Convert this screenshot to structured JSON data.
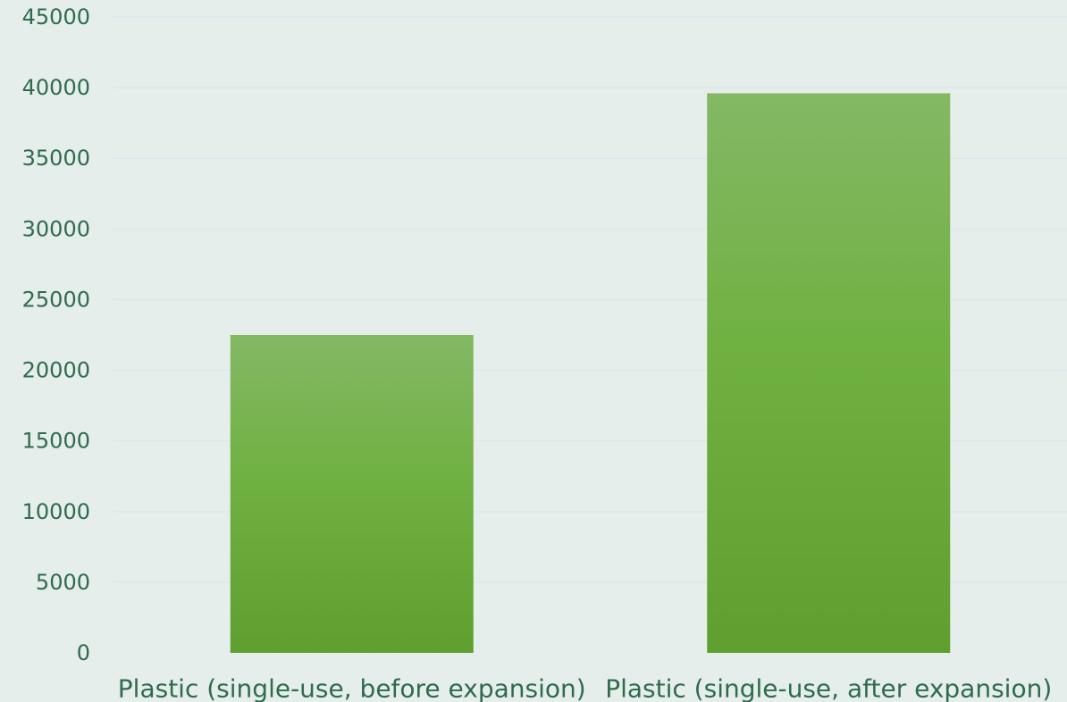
{
  "chart_data": {
    "type": "bar",
    "title": "",
    "xlabel": "",
    "ylabel": "",
    "categories": [
      "Plastic (single-use, before expansion)",
      "Plastic (single-use, after expansion)"
    ],
    "values": [
      22500,
      39600
    ],
    "ylim": [
      0,
      45000
    ],
    "yticks": [
      "0",
      "5000",
      "10000",
      "15000",
      "20000",
      "25000",
      "30000",
      "35000",
      "40000",
      "45000"
    ],
    "grid": true,
    "legend": "none",
    "colors": {
      "bar_top": "#84b865",
      "bar_mid": "#70b142",
      "bar_bottom": "#5f9f30",
      "text": "#2f6b4f",
      "grid": "#dde6ee",
      "background": "#e5eeea"
    }
  }
}
